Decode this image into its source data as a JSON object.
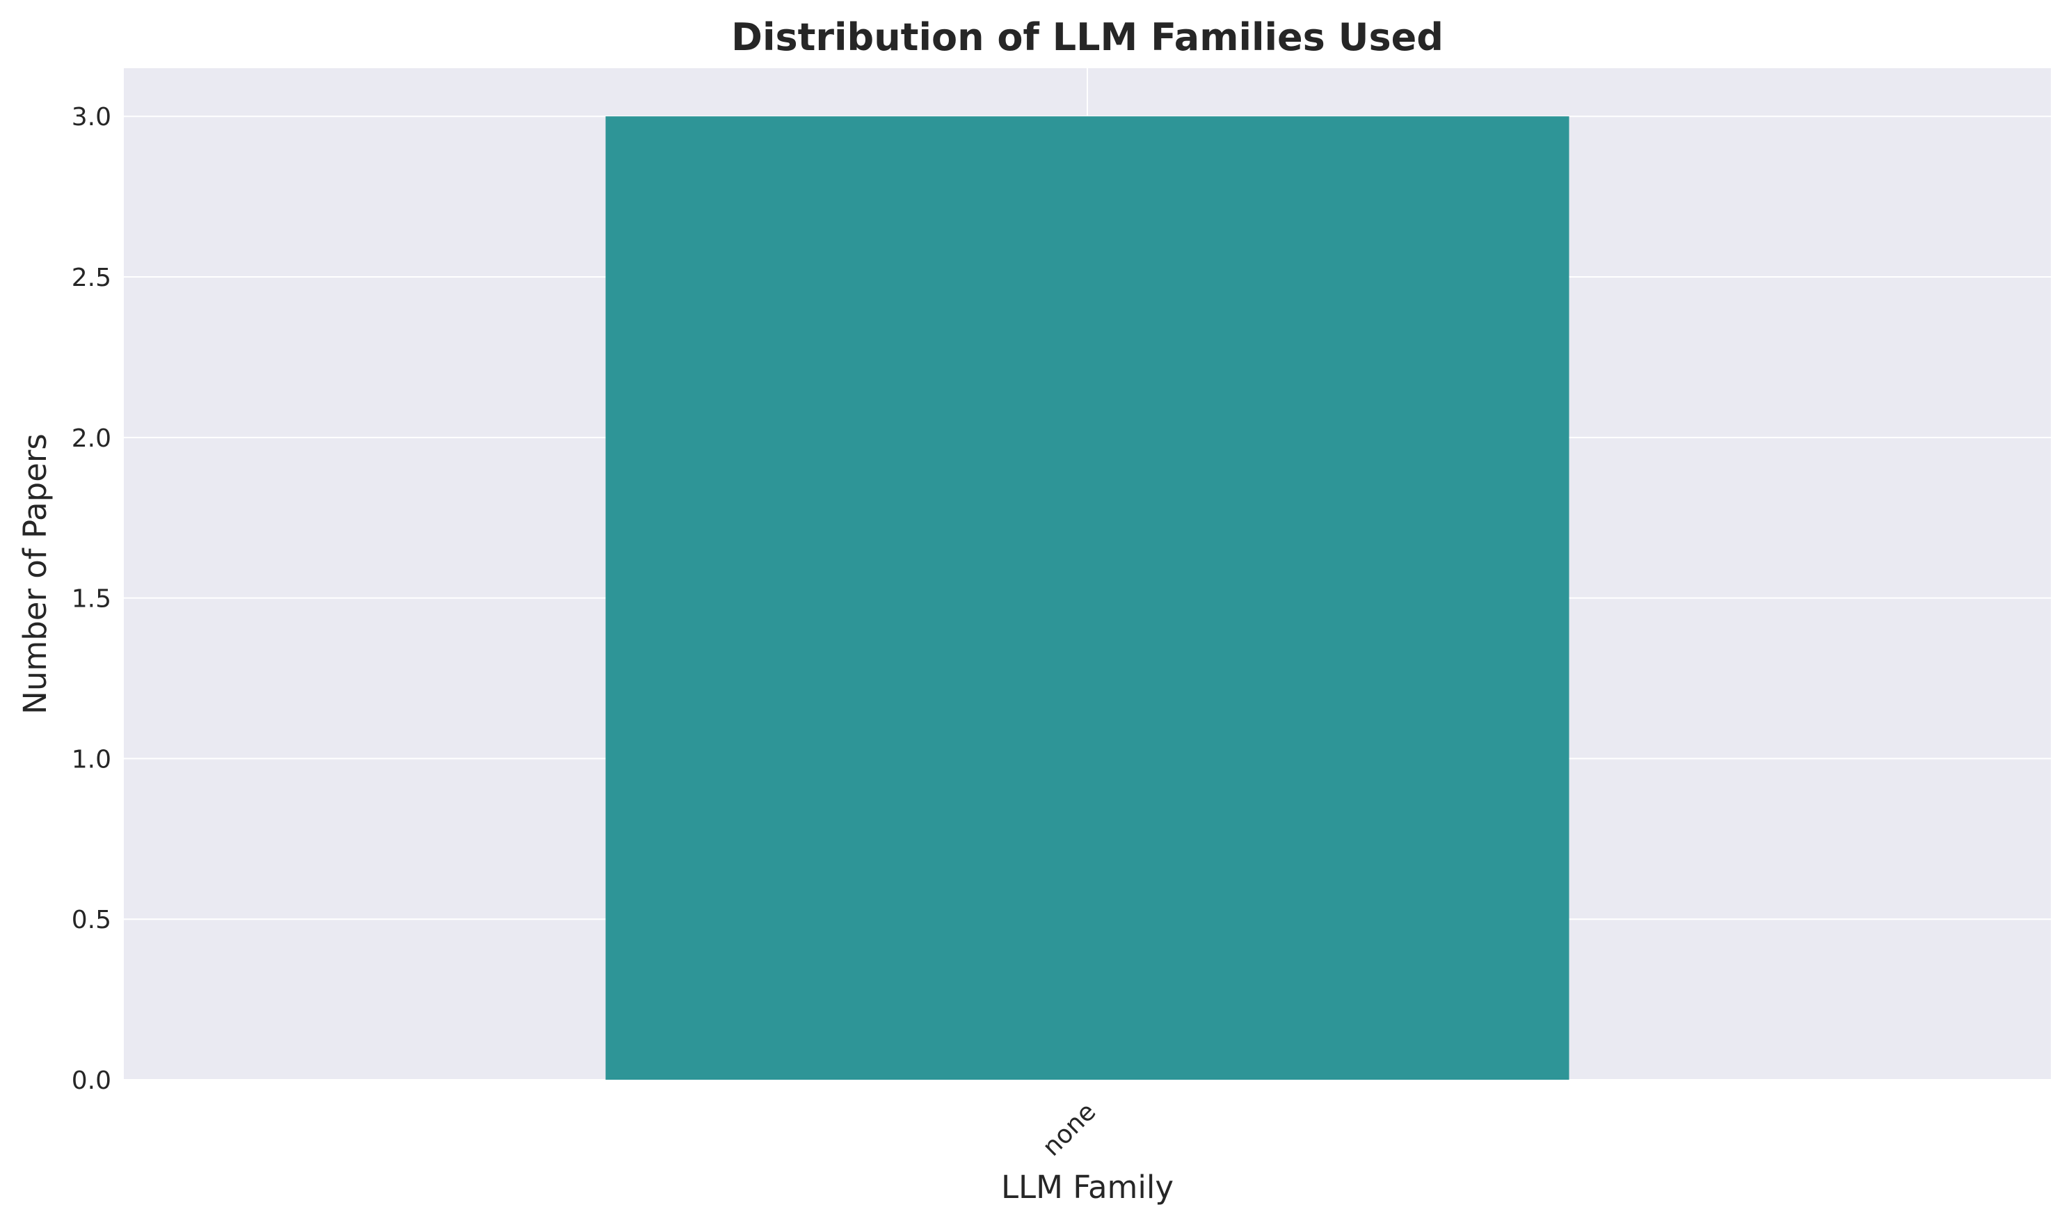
{
  "chart_data": {
    "type": "bar",
    "title": "Distribution of LLM Families Used",
    "xlabel": "LLM Family",
    "ylabel": "Number of Papers",
    "categories": [
      "none"
    ],
    "values": [
      3
    ],
    "ylim": [
      0,
      3.15
    ],
    "yticks": [
      0.0,
      0.5,
      1.0,
      1.5,
      2.0,
      2.5,
      3.0
    ],
    "ytick_labels": [
      "0.0",
      "0.5",
      "1.0",
      "1.5",
      "2.0",
      "2.5",
      "3.0"
    ],
    "grid": true,
    "legend": "none",
    "xtick_rotation": 45,
    "colors": {
      "bar": "#2e9597",
      "plot_background": "#eaeaf2",
      "grid": "#ffffff",
      "text": "#262626"
    }
  }
}
